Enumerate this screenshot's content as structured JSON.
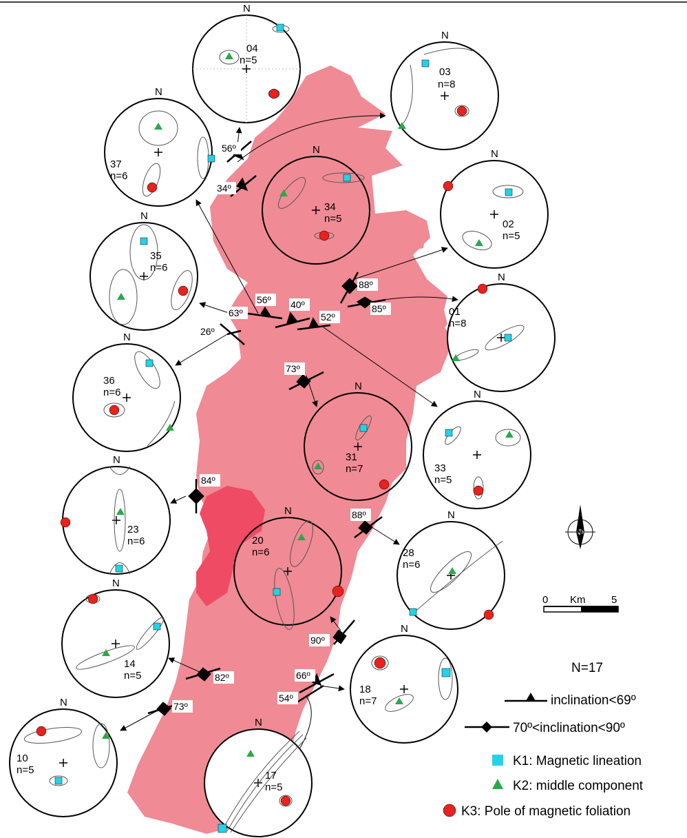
{
  "colors": {
    "rock": "#F08A94",
    "rock_dark": "#F04B64",
    "k1": "#22D3E8",
    "k2": "#2BA84A",
    "k3": "#E8221E",
    "point": "#999999"
  },
  "stereonets": [
    {
      "site": "04",
      "n": "n=5"
    },
    {
      "site": "03",
      "n": "n=8"
    },
    {
      "site": "37",
      "n": "n=6"
    },
    {
      "site": "34",
      "n": "n=5"
    },
    {
      "site": "02",
      "n": "n=5"
    },
    {
      "site": "35",
      "n": "n=6"
    },
    {
      "site": "01",
      "n": "n=8"
    },
    {
      "site": "36",
      "n": "n=6"
    },
    {
      "site": "33",
      "n": "n=5"
    },
    {
      "site": "31",
      "n": "n=7"
    },
    {
      "site": "23",
      "n": "n=6"
    },
    {
      "site": "20",
      "n": "n=6"
    },
    {
      "site": "28",
      "n": "n=6"
    },
    {
      "site": "14",
      "n": "n=5"
    },
    {
      "site": "18",
      "n": "n=7"
    },
    {
      "site": "10",
      "n": "n=5"
    },
    {
      "site": "17",
      "n": "n=5"
    }
  ],
  "north_label": "N",
  "angles": [
    "56º",
    "34º",
    "63º",
    "56º",
    "40º",
    "52º",
    "88º",
    "85º",
    "26º",
    "73º",
    "84º",
    "88º",
    "90º",
    "82º",
    "66º",
    "54º",
    "73º"
  ],
  "scale": {
    "zero": "0",
    "unit": "Km",
    "max": "5"
  },
  "legend": {
    "count": "N=17",
    "inclination_low": "inclination<69º",
    "inclination_high": "70º<inclination<90º",
    "k1": "K1: Magnetic lineation",
    "k2": "K2: middle component",
    "k3": "K3: Pole of magnetic foliation"
  }
}
